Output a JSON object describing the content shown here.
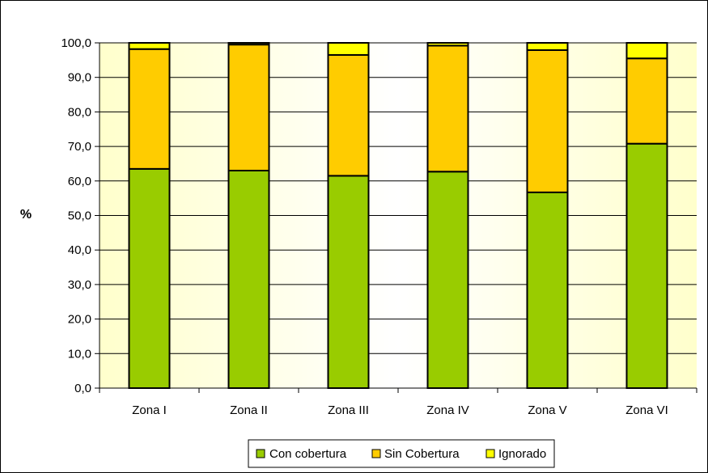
{
  "chart_data": {
    "type": "bar",
    "stacked": true,
    "ylabel": "%",
    "xlabel": "",
    "ylim": [
      0,
      100
    ],
    "ytick_step": 10,
    "y_tick_labels": [
      "0,0",
      "10,0",
      "20,0",
      "30,0",
      "40,0",
      "50,0",
      "60,0",
      "70,0",
      "80,0",
      "90,0",
      "100,0"
    ],
    "grid": true,
    "legend_position": "bottom",
    "categories": [
      "Zona I",
      "Zona II",
      "Zona III",
      "Zona IV",
      "Zona V",
      "Zona VI"
    ],
    "series": [
      {
        "name": "Con cobertura",
        "color": "#99cc00",
        "values": [
          63.5,
          63.0,
          61.5,
          62.7,
          56.7,
          70.8
        ]
      },
      {
        "name": "Sin Cobertura",
        "color": "#ffcc00",
        "values": [
          34.7,
          36.5,
          35.0,
          36.5,
          41.2,
          24.7
        ]
      },
      {
        "name": "Ignorado",
        "color": "#ffff00",
        "values": [
          1.8,
          0.5,
          3.5,
          0.8,
          2.1,
          4.5
        ]
      }
    ],
    "plot_background": "#ffffcc"
  }
}
